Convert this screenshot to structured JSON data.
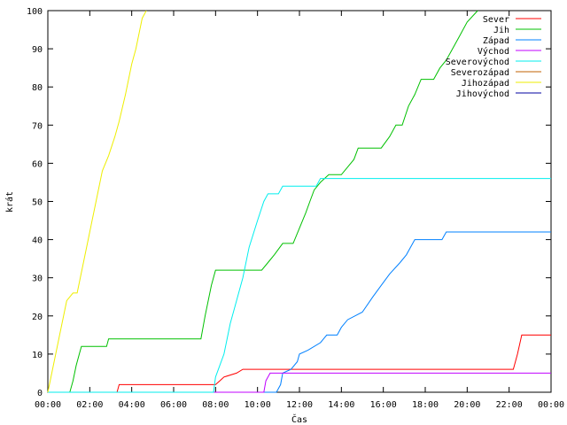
{
  "chart_data": {
    "type": "line",
    "xlabel": "Čas",
    "ylabel": "krát",
    "xlim": [
      0,
      24
    ],
    "ylim": [
      0,
      100
    ],
    "x_ticks": [
      {
        "v": 0,
        "label": "00:00"
      },
      {
        "v": 2,
        "label": "02:00"
      },
      {
        "v": 4,
        "label": "04:00"
      },
      {
        "v": 6,
        "label": "06:00"
      },
      {
        "v": 8,
        "label": "08:00"
      },
      {
        "v": 10,
        "label": "10:00"
      },
      {
        "v": 12,
        "label": "12:00"
      },
      {
        "v": 14,
        "label": "14:00"
      },
      {
        "v": 16,
        "label": "16:00"
      },
      {
        "v": 18,
        "label": "18:00"
      },
      {
        "v": 20,
        "label": "20:00"
      },
      {
        "v": 22,
        "label": "22:00"
      },
      {
        "v": 24,
        "label": "00:00"
      }
    ],
    "y_ticks": [
      0,
      10,
      20,
      30,
      40,
      50,
      60,
      70,
      80,
      90,
      100
    ],
    "grid": false,
    "legend_position": "top-right",
    "series": [
      {
        "name": "Sever",
        "color": "#ff0000",
        "points": [
          [
            0,
            0
          ],
          [
            3.3,
            0
          ],
          [
            3.4,
            2
          ],
          [
            8.0,
            2
          ],
          [
            8.2,
            3
          ],
          [
            8.4,
            4
          ],
          [
            9.0,
            5
          ],
          [
            9.3,
            6
          ],
          [
            22.2,
            6
          ],
          [
            22.4,
            10
          ],
          [
            22.6,
            15
          ],
          [
            24,
            15
          ]
        ]
      },
      {
        "name": "Jih",
        "color": "#00c000",
        "points": [
          [
            0,
            0
          ],
          [
            1.05,
            0
          ],
          [
            1.2,
            3
          ],
          [
            1.35,
            7
          ],
          [
            1.5,
            10
          ],
          [
            1.6,
            12
          ],
          [
            2.8,
            12
          ],
          [
            2.9,
            14
          ],
          [
            7.3,
            14
          ],
          [
            7.5,
            20
          ],
          [
            7.8,
            28
          ],
          [
            8.0,
            32
          ],
          [
            10.2,
            32
          ],
          [
            10.5,
            34
          ],
          [
            10.8,
            36
          ],
          [
            11.2,
            39
          ],
          [
            11.7,
            39
          ],
          [
            12.0,
            43
          ],
          [
            12.3,
            47
          ],
          [
            12.5,
            50
          ],
          [
            12.7,
            53
          ],
          [
            13.0,
            55
          ],
          [
            13.4,
            57
          ],
          [
            14.0,
            57
          ],
          [
            14.3,
            59
          ],
          [
            14.6,
            61
          ],
          [
            14.8,
            64
          ],
          [
            15.9,
            64
          ],
          [
            16.3,
            67
          ],
          [
            16.6,
            70
          ],
          [
            16.9,
            70
          ],
          [
            17.2,
            75
          ],
          [
            17.5,
            78
          ],
          [
            17.8,
            82
          ],
          [
            18.4,
            82
          ],
          [
            18.7,
            85
          ],
          [
            19.0,
            87
          ],
          [
            19.3,
            90
          ],
          [
            19.6,
            93
          ],
          [
            20.0,
            97
          ],
          [
            20.5,
            100
          ]
        ]
      },
      {
        "name": "Západ",
        "color": "#0080ff",
        "points": [
          [
            0,
            0
          ],
          [
            10.9,
            0
          ],
          [
            11.1,
            2
          ],
          [
            11.2,
            5
          ],
          [
            11.6,
            6
          ],
          [
            11.9,
            8
          ],
          [
            12.0,
            10
          ],
          [
            12.4,
            11
          ],
          [
            13.0,
            13
          ],
          [
            13.3,
            15
          ],
          [
            13.8,
            15
          ],
          [
            14.0,
            17
          ],
          [
            14.3,
            19
          ],
          [
            15.0,
            21
          ],
          [
            15.5,
            25
          ],
          [
            15.9,
            28
          ],
          [
            16.3,
            31
          ],
          [
            16.8,
            34
          ],
          [
            17.1,
            36
          ],
          [
            17.3,
            38
          ],
          [
            17.5,
            40
          ],
          [
            18.8,
            40
          ],
          [
            19.0,
            42
          ],
          [
            24,
            42
          ]
        ]
      },
      {
        "name": "Východ",
        "color": "#c000ff",
        "points": [
          [
            0,
            0
          ],
          [
            10.3,
            0
          ],
          [
            10.4,
            3
          ],
          [
            10.6,
            5
          ],
          [
            24,
            5
          ]
        ]
      },
      {
        "name": "Severovýchod",
        "color": "#00eeee",
        "points": [
          [
            0,
            0
          ],
          [
            7.9,
            0
          ],
          [
            8.0,
            4
          ],
          [
            8.4,
            10
          ],
          [
            8.7,
            18
          ],
          [
            9.0,
            24
          ],
          [
            9.3,
            30
          ],
          [
            9.6,
            38
          ],
          [
            10.0,
            45
          ],
          [
            10.3,
            50
          ],
          [
            10.5,
            52
          ],
          [
            11.0,
            52
          ],
          [
            11.2,
            54
          ],
          [
            12.8,
            54
          ],
          [
            13.0,
            56
          ],
          [
            24,
            56
          ]
        ]
      },
      {
        "name": "Severozápad",
        "color": "#c06000",
        "points": []
      },
      {
        "name": "Jihozápad",
        "color": "#eeee00",
        "points": [
          [
            0,
            0
          ],
          [
            0.3,
            8
          ],
          [
            0.6,
            16
          ],
          [
            0.9,
            24
          ],
          [
            1.2,
            26
          ],
          [
            1.4,
            26
          ],
          [
            1.7,
            34
          ],
          [
            2.0,
            42
          ],
          [
            2.3,
            50
          ],
          [
            2.6,
            58
          ],
          [
            2.9,
            62
          ],
          [
            3.2,
            67
          ],
          [
            3.4,
            71
          ],
          [
            3.7,
            78
          ],
          [
            4.0,
            86
          ],
          [
            4.2,
            90
          ],
          [
            4.5,
            98
          ],
          [
            4.7,
            100
          ]
        ]
      },
      {
        "name": "Jihovýchod",
        "color": "#0000a0",
        "points": []
      }
    ]
  }
}
